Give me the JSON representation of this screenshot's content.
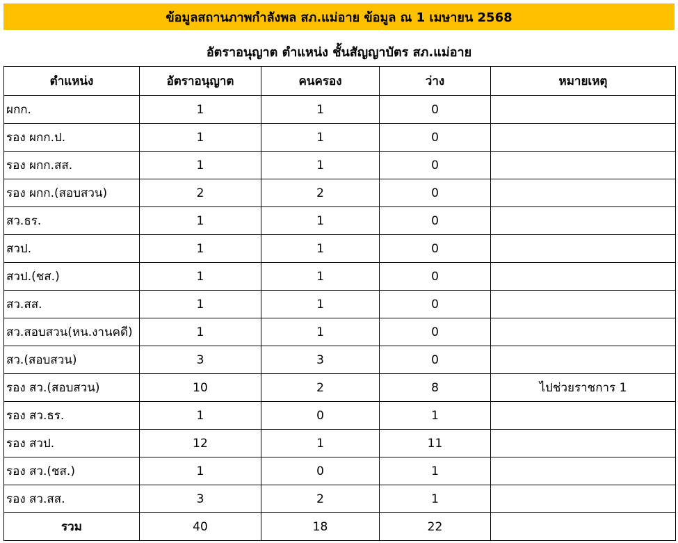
{
  "header": {
    "title": "ข้อมูลสถานภาพกำลังพล สภ.แม่อาย ข้อมูล ณ 1 เมษายน 2568"
  },
  "table": {
    "caption": "อัตราอนุญาต ตำแหน่ง ชั้นสัญญาบัตร สภ.แม่อาย",
    "columns": [
      "ตำแหน่ง",
      "อัตราอนุญาต",
      "คนครอง",
      "ว่าง",
      "หมายเหตุ"
    ],
    "rows": [
      {
        "position": "ผกก.",
        "authorized": 1,
        "held": 1,
        "vacant": 0
      },
      {
        "position": "รอง ผกก.ป.",
        "authorized": 1,
        "held": 1,
        "vacant": 0
      },
      {
        "position": "รอง ผกก.สส.",
        "authorized": 1,
        "held": 1,
        "vacant": 0
      },
      {
        "position": "รอง ผกก.(สอบสวน)",
        "authorized": 2,
        "held": 2,
        "vacant": 0
      },
      {
        "position": "สว.ธร.",
        "authorized": 1,
        "held": 1,
        "vacant": 0
      },
      {
        "position": "สวป.",
        "authorized": 1,
        "held": 1,
        "vacant": 0
      },
      {
        "position": "สวป.(ชส.)",
        "authorized": 1,
        "held": 1,
        "vacant": 0
      },
      {
        "position": "สว.สส.",
        "authorized": 1,
        "held": 1,
        "vacant": 0
      },
      {
        "position": "สว.สอบสวน(หน.งานคดี)",
        "authorized": 1,
        "held": 1,
        "vacant": 0
      },
      {
        "position": "สว.(สอบสวน)",
        "authorized": 3,
        "held": 3,
        "vacant": 0
      },
      {
        "position": "รอง สว.(สอบสวน)",
        "authorized": 10,
        "held": 2,
        "vacant": 8,
        "remark": "ไปช่วยราชการ 1"
      },
      {
        "position": "รอง สว.ธร.",
        "authorized": 1,
        "held": 0,
        "vacant": 1
      },
      {
        "position": "รอง สวป.",
        "authorized": 12,
        "held": 1,
        "vacant": 11
      },
      {
        "position": "รอง สว.(ชส.)",
        "authorized": 1,
        "held": 0,
        "vacant": 1
      },
      {
        "position": "รอง สว.สส.",
        "authorized": 3,
        "held": 2,
        "vacant": 1
      }
    ],
    "total": {
      "position": "รวม",
      "authorized": 40,
      "held": 18,
      "vacant": 22
    }
  }
}
